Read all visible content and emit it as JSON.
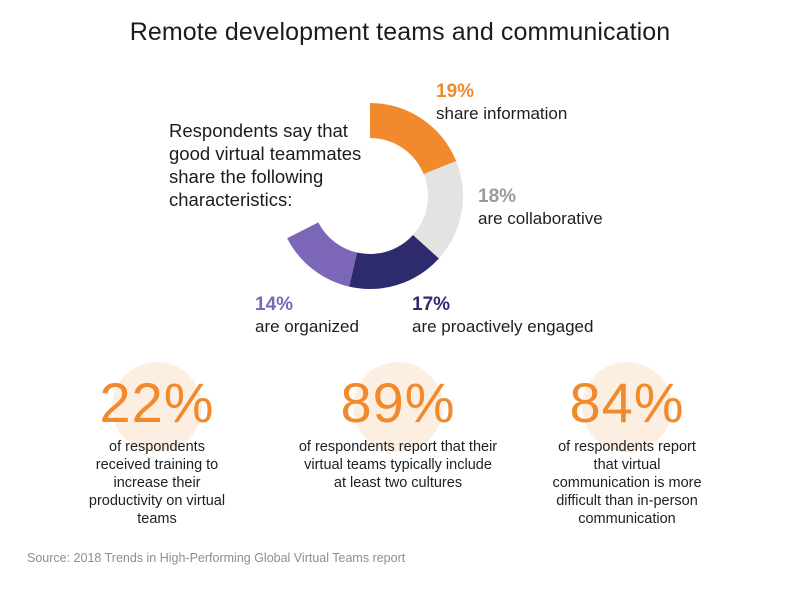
{
  "title": "Remote development teams and communication",
  "intro": "Respondents say that good virtual teammates share the following characteristics:",
  "chart_data": {
    "type": "pie",
    "style": "donut",
    "segments": [
      {
        "label": "share information",
        "value": 19,
        "pct_text": "19%",
        "color": "#f08a2c"
      },
      {
        "label": "are collaborative",
        "value": 18,
        "pct_text": "18%",
        "color": "#e3e3e3",
        "text_color": "#9a9a9a"
      },
      {
        "label": "are proactively engaged",
        "value": 17,
        "pct_text": "17%",
        "color": "#2d2a6e"
      },
      {
        "label": "are organized",
        "value": 14,
        "pct_text": "14%",
        "color": "#7b66b8"
      }
    ]
  },
  "stats": [
    {
      "value": "22%",
      "description": "of respondents received training to increase their productivity on virtual teams"
    },
    {
      "value": "89%",
      "description": "of respondents report that their virtual teams typically include at least two cultures"
    },
    {
      "value": "84%",
      "description": "of respondents report that virtual communication is more difficult than in-person communication"
    }
  ],
  "source": "Source: 2018 Trends in High-Performing Global Virtual Teams report"
}
